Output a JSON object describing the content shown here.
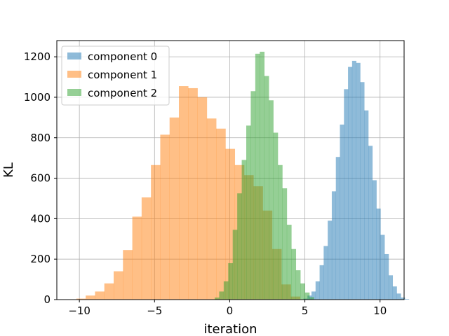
{
  "chart_data": {
    "type": "histogram",
    "xlabel": "iteration",
    "ylabel": "KL",
    "xlim": [
      -11.5,
      11.6
    ],
    "ylim": [
      0,
      1280
    ],
    "xticks": [
      -10,
      -5,
      0,
      5,
      10
    ],
    "xtick_labels": [
      "−10",
      "−5",
      "0",
      "5",
      "10"
    ],
    "yticks": [
      0,
      200,
      400,
      600,
      800,
      1000,
      1200
    ],
    "ytick_labels": [
      "0",
      "200",
      "400",
      "600",
      "800",
      "1000",
      "1200"
    ],
    "grid": true,
    "legend_position": "top-left",
    "series": [
      {
        "name": "component 0",
        "color": "#1f77b4",
        "alpha": 0.5,
        "bin_start": 4.9,
        "bin_width": 0.27,
        "counts": [
          5,
          20,
          40,
          90,
          170,
          265,
          390,
          535,
          705,
          865,
          1040,
          1150,
          1180,
          1170,
          1075,
          935,
          760,
          590,
          450,
          320,
          225,
          120,
          65,
          30,
          10,
          3
        ]
      },
      {
        "name": "component 1",
        "color": "#ff7f0e",
        "alpha": 0.5,
        "bin_start": -10.2,
        "bin_width": 0.62,
        "counts": [
          5,
          20,
          40,
          80,
          140,
          245,
          410,
          505,
          665,
          815,
          900,
          1055,
          1045,
          1000,
          895,
          845,
          745,
          665,
          615,
          560,
          440,
          250,
          75,
          15
        ]
      },
      {
        "name": "component 2",
        "color": "#2ca02c",
        "alpha": 0.5,
        "bin_start": -1.0,
        "bin_width": 0.3,
        "counts": [
          10,
          40,
          90,
          180,
          345,
          525,
          690,
          860,
          1030,
          1215,
          1225,
          1105,
          985,
          825,
          665,
          550,
          370,
          250,
          145,
          80,
          35,
          12
        ]
      }
    ]
  }
}
